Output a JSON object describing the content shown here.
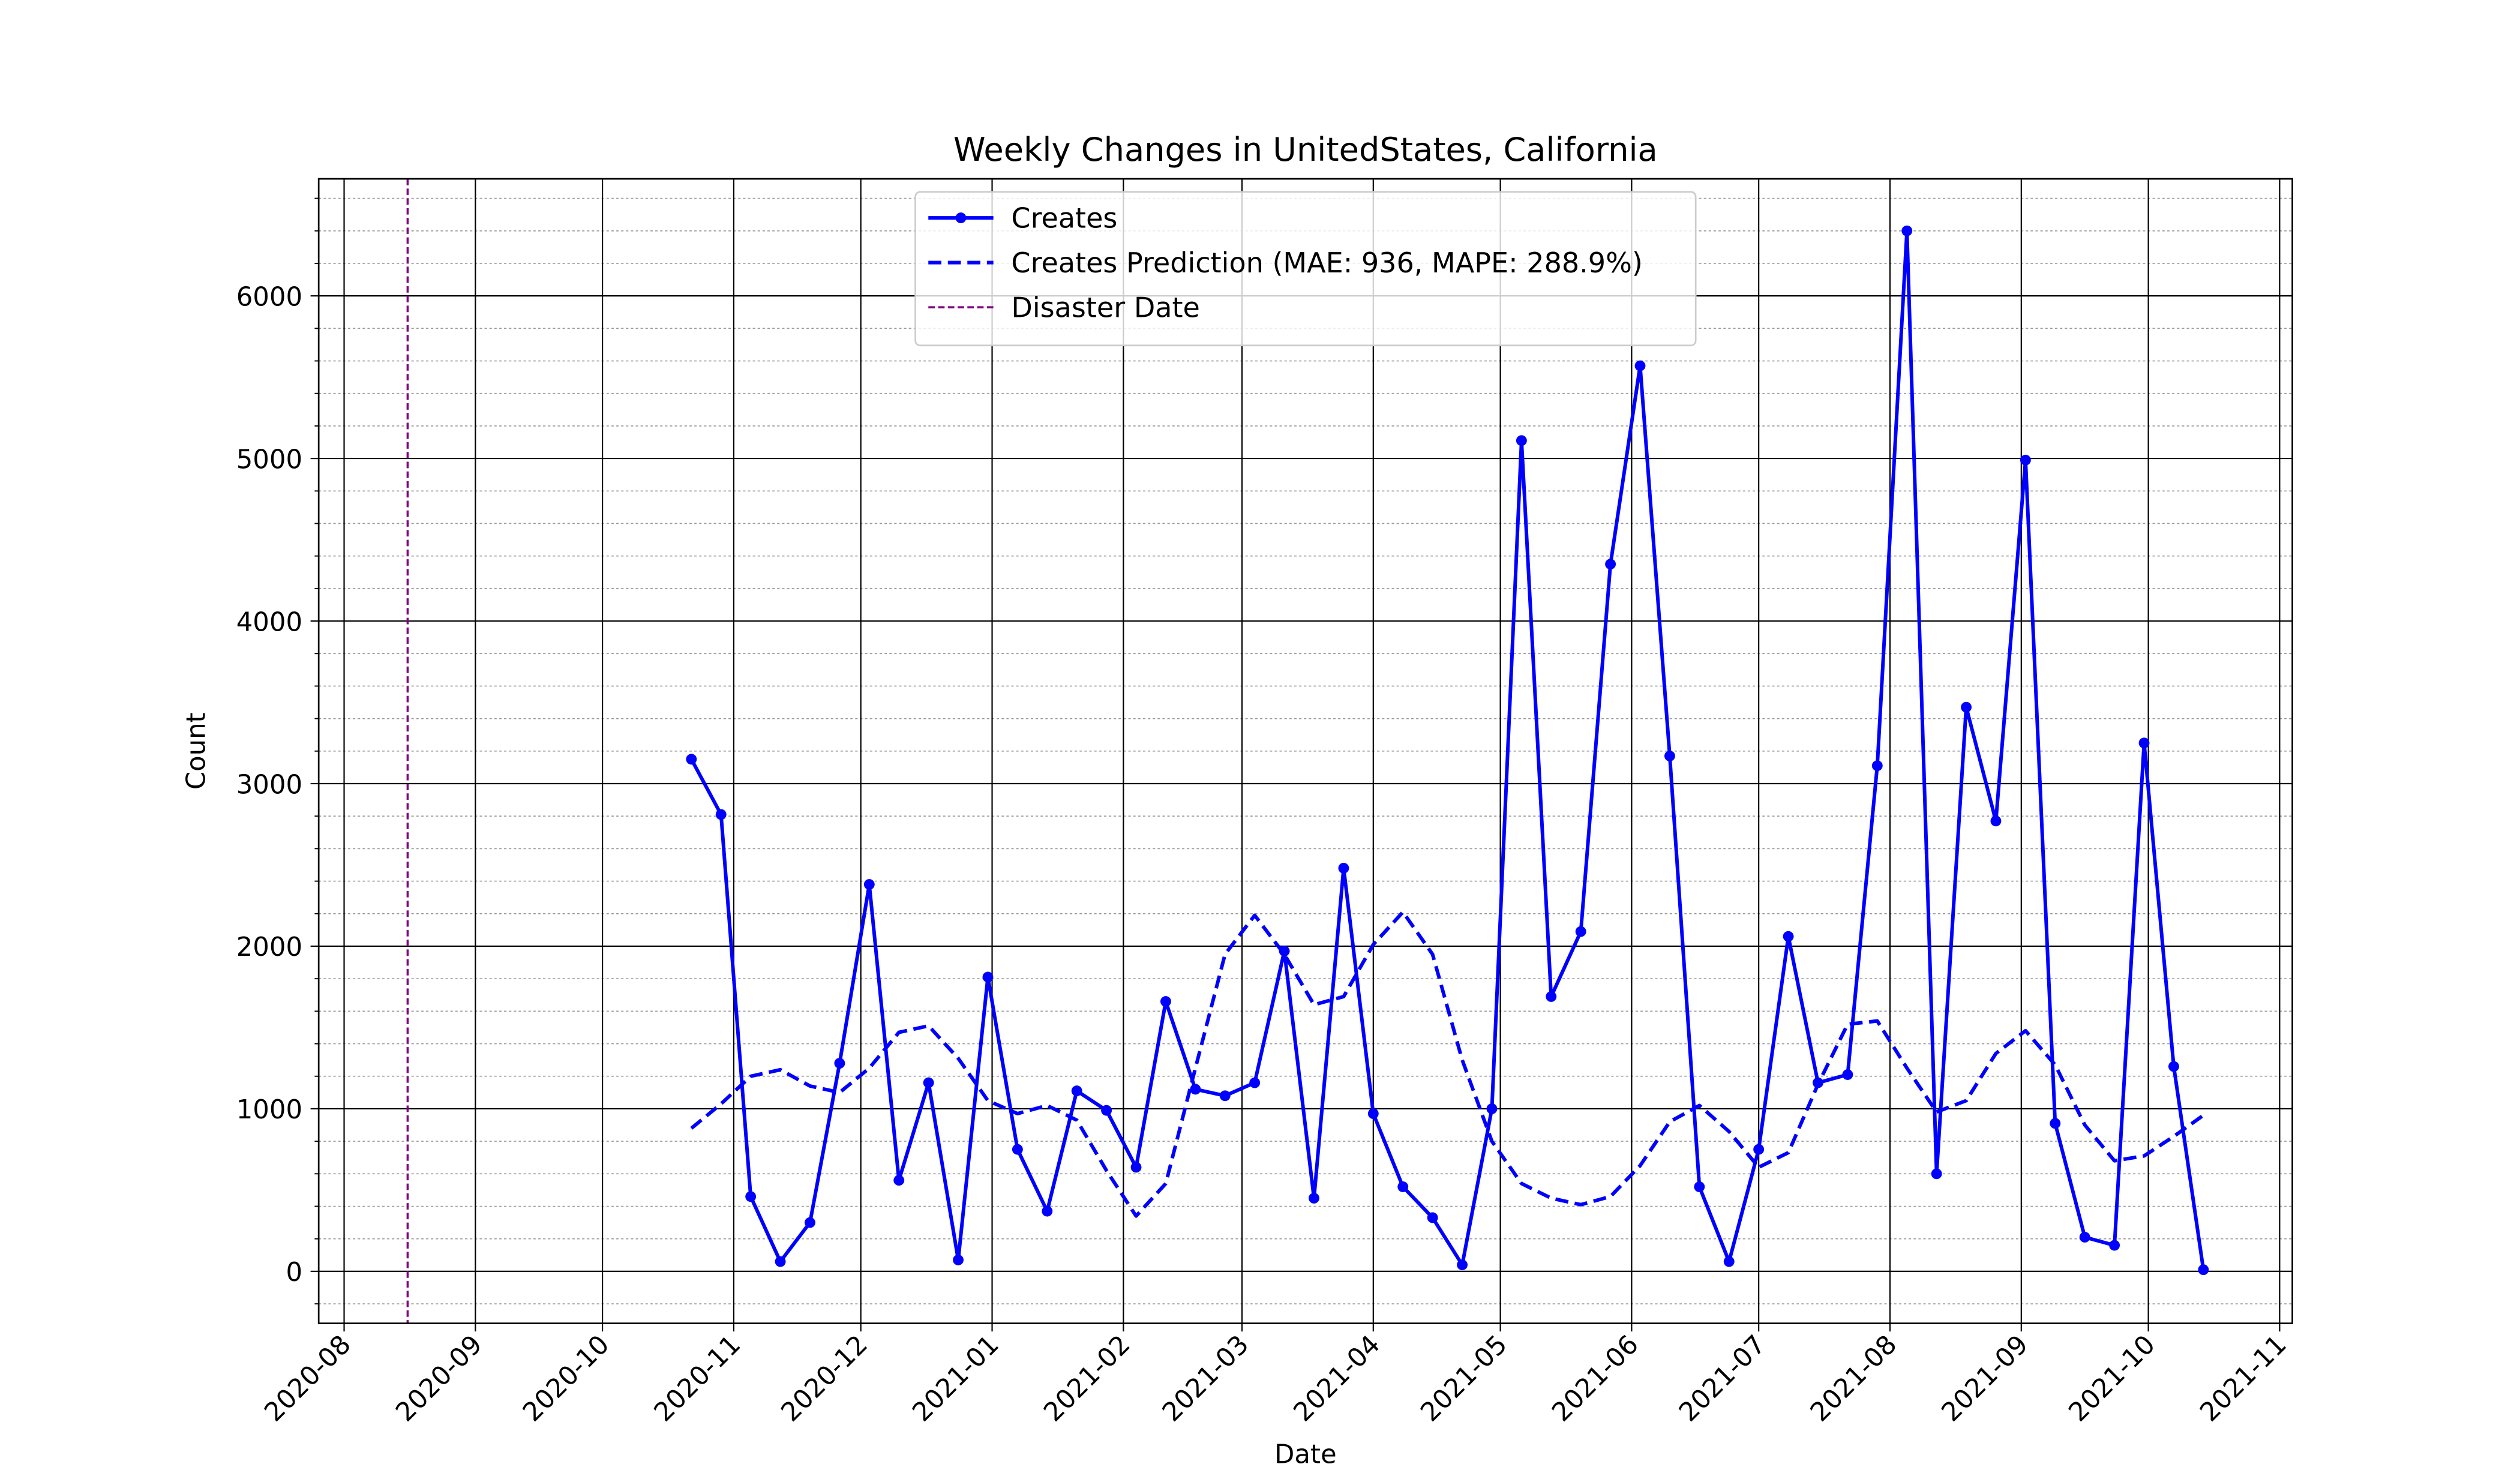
{
  "chart_data": {
    "type": "line",
    "title": "Weekly Changes in UnitedStates, California",
    "xlabel": "Date",
    "ylabel": "Count",
    "x": [
      "2020-10-22",
      "2020-10-29",
      "2020-11-05",
      "2020-11-12",
      "2020-11-19",
      "2020-11-26",
      "2020-12-03",
      "2020-12-10",
      "2020-12-17",
      "2020-12-24",
      "2020-12-31",
      "2021-01-07",
      "2021-01-14",
      "2021-01-21",
      "2021-01-28",
      "2021-02-04",
      "2021-02-11",
      "2021-02-18",
      "2021-02-25",
      "2021-03-04",
      "2021-03-11",
      "2021-03-18",
      "2021-03-25",
      "2021-04-01",
      "2021-04-08",
      "2021-04-15",
      "2021-04-22",
      "2021-04-29",
      "2021-05-06",
      "2021-05-13",
      "2021-05-20",
      "2021-05-27",
      "2021-06-03",
      "2021-06-10",
      "2021-06-17",
      "2021-06-24",
      "2021-07-01",
      "2021-07-08",
      "2021-07-15",
      "2021-07-22",
      "2021-07-29",
      "2021-08-05",
      "2021-08-12",
      "2021-08-19",
      "2021-08-26",
      "2021-09-02",
      "2021-09-09",
      "2021-09-16",
      "2021-09-23",
      "2021-09-30",
      "2021-10-07",
      "2021-10-14"
    ],
    "series": [
      {
        "name": "Creates",
        "color": "#0000ff",
        "style": "solid",
        "marker": true,
        "values": [
          3150,
          2810,
          460,
          60,
          300,
          1280,
          2380,
          560,
          1160,
          70,
          1810,
          750,
          370,
          1110,
          990,
          640,
          1660,
          1120,
          1080,
          1160,
          1970,
          450,
          2480,
          970,
          520,
          330,
          40,
          1000,
          5110,
          1690,
          2090,
          4350,
          5570,
          3170,
          520,
          60,
          750,
          2060,
          1160,
          1210,
          3110,
          6400,
          600,
          3470,
          2770,
          4990,
          910,
          210,
          160,
          3250,
          1260,
          10
        ]
      },
      {
        "name": "Creates Prediction (MAE: 936, MAPE: 288.9%)",
        "color": "#0000ff",
        "style": "dashed",
        "marker": false,
        "values": [
          880,
          1030,
          1200,
          1240,
          1140,
          1100,
          1250,
          1470,
          1510,
          1310,
          1050,
          970,
          1020,
          930,
          620,
          340,
          540,
          1250,
          1950,
          2190,
          1950,
          1640,
          1690,
          2010,
          2210,
          1950,
          1300,
          800,
          540,
          450,
          410,
          460,
          650,
          920,
          1020,
          860,
          640,
          730,
          1150,
          1520,
          1540,
          1250,
          980,
          1050,
          1340,
          1480,
          1270,
          900,
          680,
          710,
          830,
          960
        ]
      }
    ],
    "vlines": [
      {
        "name": "Disaster Date",
        "x": "2020-08-16",
        "color": "#800080"
      }
    ],
    "xlim": [
      "2020-07-26",
      "2021-11-04"
    ],
    "xticks": [
      "2020-08",
      "2020-09",
      "2020-10",
      "2020-11",
      "2020-12",
      "2021-01",
      "2021-02",
      "2021-03",
      "2021-04",
      "2021-05",
      "2021-06",
      "2021-07",
      "2021-08",
      "2021-09",
      "2021-10",
      "2021-11"
    ],
    "ylim": [
      -320,
      6720
    ],
    "yticks": [
      0,
      1000,
      2000,
      3000,
      4000,
      5000,
      6000
    ],
    "yminor_ticks": [
      -200,
      200,
      400,
      600,
      800,
      1200,
      1400,
      1600,
      1800,
      2200,
      2400,
      2600,
      2800,
      3200,
      3400,
      3600,
      3800,
      4200,
      4400,
      4600,
      4800,
      5200,
      5400,
      5600,
      5800,
      6200,
      6400,
      6600
    ],
    "grid": true,
    "legend": "upper center"
  }
}
